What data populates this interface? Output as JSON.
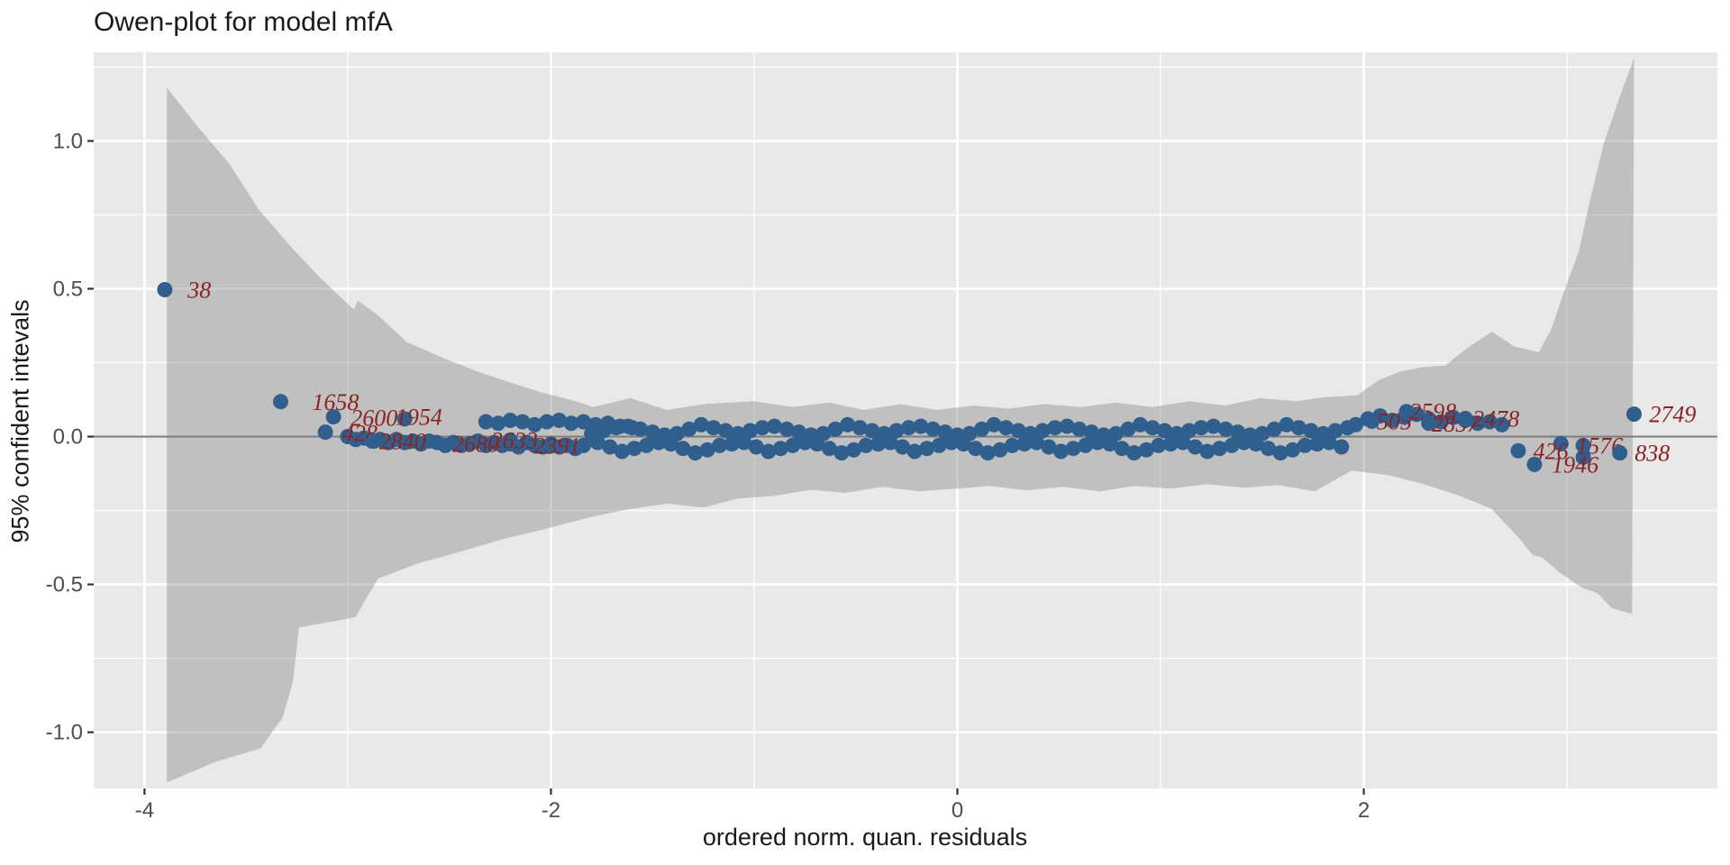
{
  "title": "Owen-plot for model mfA",
  "colors": {
    "panel_bg": "#e9e9e9",
    "grid": "#ffffff",
    "band_gray": "#c7c7c7",
    "zero_line": "#7d7d7d",
    "point_blue": "#315f8d",
    "label_red": "#8b2323",
    "tick_text": "#4d4d4d",
    "axis_text": "#1a1a1a"
  },
  "chart_data": {
    "type": "scatter",
    "title": "Owen-plot for model mfA",
    "xlabel": "ordered norm. quan. residuals",
    "ylabel": "95% confident intevals",
    "x_range": [
      -4.25,
      3.74
    ],
    "y_range": [
      -1.19,
      1.3
    ],
    "grid": "on",
    "legend": "none",
    "x_ticks": [
      {
        "v": -4,
        "label": "-4"
      },
      {
        "v": -2,
        "label": "-2"
      },
      {
        "v": 0,
        "label": "0"
      },
      {
        "v": 2,
        "label": "2"
      }
    ],
    "y_ticks": [
      {
        "v": 1.0,
        "label": "1.0"
      },
      {
        "v": 0.5,
        "label": "0.5"
      },
      {
        "v": 0.0,
        "label": "0.0"
      },
      {
        "v": -0.5,
        "label": "-0.5"
      },
      {
        "v": -1.0,
        "label": "-1.0"
      }
    ],
    "x_minor": [
      -3,
      -1,
      1,
      3
    ],
    "y_minor": [
      1.25,
      0.75,
      0.25,
      -0.25,
      -0.75
    ],
    "hline": 0,
    "band": {
      "upper": [
        [
          -3.89,
          1.18
        ],
        [
          -3.74,
          1.05
        ],
        [
          -3.58,
          0.92
        ],
        [
          -3.44,
          0.77
        ],
        [
          -3.29,
          0.65
        ],
        [
          -3.14,
          0.54
        ],
        [
          -2.97,
          0.43
        ],
        [
          -2.95,
          0.46
        ],
        [
          -2.85,
          0.41
        ],
        [
          -2.71,
          0.32
        ],
        [
          -2.61,
          0.29
        ],
        [
          -2.51,
          0.26
        ],
        [
          -2.36,
          0.22
        ],
        [
          -2.23,
          0.19
        ],
        [
          -2.05,
          0.15
        ],
        [
          -1.88,
          0.12
        ],
        [
          -1.79,
          0.1
        ],
        [
          -1.61,
          0.13
        ],
        [
          -1.43,
          0.09
        ],
        [
          -1.25,
          0.11
        ],
        [
          -1.0,
          0.12
        ],
        [
          -0.81,
          0.1
        ],
        [
          -0.63,
          0.115
        ],
        [
          -0.46,
          0.09
        ],
        [
          -0.28,
          0.11
        ],
        [
          -0.1,
          0.09
        ],
        [
          0.08,
          0.105
        ],
        [
          0.25,
          0.095
        ],
        [
          0.43,
          0.11
        ],
        [
          0.61,
          0.1
        ],
        [
          0.78,
          0.115
        ],
        [
          0.96,
          0.1
        ],
        [
          1.14,
          0.12
        ],
        [
          1.32,
          0.105
        ],
        [
          1.49,
          0.13
        ],
        [
          1.67,
          0.12
        ],
        [
          1.8,
          0.133
        ],
        [
          1.97,
          0.14
        ],
        [
          2.07,
          0.19
        ],
        [
          2.18,
          0.22
        ],
        [
          2.29,
          0.235
        ],
        [
          2.4,
          0.24
        ],
        [
          2.51,
          0.3
        ],
        [
          2.63,
          0.355
        ],
        [
          2.74,
          0.305
        ],
        [
          2.86,
          0.285
        ],
        [
          2.92,
          0.36
        ],
        [
          2.99,
          0.5
        ],
        [
          3.06,
          0.63
        ],
        [
          3.11,
          0.79
        ],
        [
          3.18,
          0.99
        ],
        [
          3.27,
          1.17
        ],
        [
          3.33,
          1.28
        ]
      ],
      "lower": [
        [
          -3.89,
          -1.17
        ],
        [
          -3.65,
          -1.1
        ],
        [
          -3.43,
          -1.055
        ],
        [
          -3.32,
          -0.95
        ],
        [
          -3.27,
          -0.83
        ],
        [
          -3.24,
          -0.645
        ],
        [
          -3.07,
          -0.625
        ],
        [
          -2.96,
          -0.61
        ],
        [
          -2.92,
          -0.56
        ],
        [
          -2.85,
          -0.48
        ],
        [
          -2.79,
          -0.465
        ],
        [
          -2.66,
          -0.43
        ],
        [
          -2.5,
          -0.4
        ],
        [
          -2.35,
          -0.37
        ],
        [
          -2.2,
          -0.34
        ],
        [
          -2.07,
          -0.32
        ],
        [
          -1.96,
          -0.3
        ],
        [
          -1.79,
          -0.27
        ],
        [
          -1.61,
          -0.245
        ],
        [
          -1.43,
          -0.227
        ],
        [
          -1.25,
          -0.24
        ],
        [
          -1.08,
          -0.21
        ],
        [
          -0.9,
          -0.2
        ],
        [
          -0.72,
          -0.18
        ],
        [
          -0.55,
          -0.19
        ],
        [
          -0.37,
          -0.17
        ],
        [
          -0.19,
          -0.185
        ],
        [
          0.0,
          -0.176
        ],
        [
          0.16,
          -0.167
        ],
        [
          0.34,
          -0.182
        ],
        [
          0.52,
          -0.17
        ],
        [
          0.7,
          -0.185
        ],
        [
          0.87,
          -0.167
        ],
        [
          1.05,
          -0.176
        ],
        [
          1.23,
          -0.161
        ],
        [
          1.41,
          -0.173
        ],
        [
          1.58,
          -0.164
        ],
        [
          1.76,
          -0.185
        ],
        [
          1.94,
          -0.115
        ],
        [
          2.12,
          -0.13
        ],
        [
          2.29,
          -0.16
        ],
        [
          2.46,
          -0.197
        ],
        [
          2.63,
          -0.245
        ],
        [
          2.69,
          -0.29
        ],
        [
          2.76,
          -0.34
        ],
        [
          2.83,
          -0.4
        ],
        [
          2.88,
          -0.41
        ],
        [
          2.96,
          -0.458
        ],
        [
          3.07,
          -0.51
        ],
        [
          3.15,
          -0.53
        ],
        [
          3.22,
          -0.58
        ],
        [
          3.32,
          -0.6
        ]
      ]
    },
    "points": [
      [
        -3.0,
        0.0
      ],
      [
        -2.96,
        -0.01
      ],
      [
        -2.92,
        -0.005
      ],
      [
        -2.88,
        -0.015
      ],
      [
        -2.84,
        -0.01
      ],
      [
        -2.8,
        -0.02
      ],
      [
        -2.76,
        -0.01
      ],
      [
        -2.72,
        -0.02
      ],
      [
        -2.68,
        -0.015
      ],
      [
        -2.64,
        -0.025
      ],
      [
        -2.6,
        -0.015
      ],
      [
        -2.56,
        -0.02
      ],
      [
        -2.52,
        -0.03
      ],
      [
        -2.48,
        -0.02
      ],
      [
        -2.44,
        -0.03
      ],
      [
        -2.4,
        -0.025
      ],
      [
        -2.36,
        -0.015
      ],
      [
        -2.32,
        -0.03
      ],
      [
        -2.28,
        -0.02
      ],
      [
        -2.24,
        -0.03
      ],
      [
        -2.2,
        -0.025
      ],
      [
        -2.16,
        -0.035
      ],
      [
        -2.12,
        -0.02
      ],
      [
        -2.08,
        -0.03
      ],
      [
        -2.04,
        -0.035
      ],
      [
        -2.0,
        -0.025
      ],
      [
        -1.96,
        -0.035
      ],
      [
        -1.92,
        -0.03
      ],
      [
        -1.88,
        -0.04
      ],
      [
        -1.84,
        -0.03
      ],
      [
        -2.32,
        0.05
      ],
      [
        -2.26,
        0.045
      ],
      [
        -2.2,
        0.055
      ],
      [
        -2.14,
        0.05
      ],
      [
        -2.08,
        0.04
      ],
      [
        -2.02,
        0.05
      ],
      [
        -1.96,
        0.055
      ],
      [
        -1.9,
        0.045
      ],
      [
        -1.84,
        0.05
      ],
      [
        -1.78,
        0.04
      ],
      [
        -1.72,
        0.045
      ],
      [
        -1.66,
        0.035
      ],
      [
        -1.6,
        0.03
      ],
      [
        -1.8,
        0.01
      ],
      [
        -1.74,
        0.02
      ],
      [
        -1.68,
        0.03
      ],
      [
        -1.62,
        0.035
      ],
      [
        -1.56,
        0.025
      ],
      [
        -1.5,
        0.015
      ],
      [
        -1.44,
        0.005
      ],
      [
        -1.38,
        0.01
      ],
      [
        -1.32,
        0.025
      ],
      [
        -1.26,
        0.04
      ],
      [
        -1.2,
        0.03
      ],
      [
        -1.14,
        0.02
      ],
      [
        -1.08,
        0.01
      ],
      [
        -1.02,
        0.02
      ],
      [
        -0.96,
        0.03
      ],
      [
        -0.9,
        0.035
      ],
      [
        -0.84,
        0.025
      ],
      [
        -0.78,
        0.015
      ],
      [
        -0.72,
        0.005
      ],
      [
        -0.66,
        0.01
      ],
      [
        -0.6,
        0.025
      ],
      [
        -0.54,
        0.04
      ],
      [
        -0.48,
        0.03
      ],
      [
        -0.42,
        0.02
      ],
      [
        -0.36,
        0.01
      ],
      [
        -0.3,
        0.02
      ],
      [
        -0.24,
        0.03
      ],
      [
        -0.18,
        0.035
      ],
      [
        -0.12,
        0.025
      ],
      [
        -0.06,
        0.015
      ],
      [
        0.0,
        0.005
      ],
      [
        0.06,
        0.01
      ],
      [
        0.12,
        0.025
      ],
      [
        0.18,
        0.04
      ],
      [
        0.24,
        0.03
      ],
      [
        0.3,
        0.02
      ],
      [
        0.36,
        0.01
      ],
      [
        0.42,
        0.02
      ],
      [
        0.48,
        0.03
      ],
      [
        0.54,
        0.035
      ],
      [
        0.6,
        0.025
      ],
      [
        0.66,
        0.015
      ],
      [
        0.72,
        0.005
      ],
      [
        0.78,
        0.01
      ],
      [
        0.84,
        0.025
      ],
      [
        0.9,
        0.04
      ],
      [
        0.96,
        0.03
      ],
      [
        1.02,
        0.02
      ],
      [
        1.08,
        0.01
      ],
      [
        1.14,
        0.02
      ],
      [
        1.2,
        0.03
      ],
      [
        1.26,
        0.035
      ],
      [
        1.32,
        0.025
      ],
      [
        1.38,
        0.015
      ],
      [
        1.44,
        0.005
      ],
      [
        1.5,
        0.01
      ],
      [
        1.56,
        0.025
      ],
      [
        1.62,
        0.04
      ],
      [
        1.68,
        0.03
      ],
      [
        1.74,
        0.02
      ],
      [
        1.8,
        0.01
      ],
      [
        1.86,
        0.02
      ],
      [
        1.92,
        0.03
      ],
      [
        -1.77,
        -0.02
      ],
      [
        -1.71,
        -0.035
      ],
      [
        -1.65,
        -0.05
      ],
      [
        -1.59,
        -0.04
      ],
      [
        -1.53,
        -0.03
      ],
      [
        -1.47,
        -0.02
      ],
      [
        -1.41,
        -0.025
      ],
      [
        -1.35,
        -0.04
      ],
      [
        -1.29,
        -0.055
      ],
      [
        -1.23,
        -0.045
      ],
      [
        -1.17,
        -0.03
      ],
      [
        -1.11,
        -0.025
      ],
      [
        -1.05,
        -0.02
      ],
      [
        -0.99,
        -0.035
      ],
      [
        -0.93,
        -0.05
      ],
      [
        -0.87,
        -0.04
      ],
      [
        -0.81,
        -0.03
      ],
      [
        -0.75,
        -0.02
      ],
      [
        -0.69,
        -0.025
      ],
      [
        -0.63,
        -0.04
      ],
      [
        -0.57,
        -0.055
      ],
      [
        -0.51,
        -0.045
      ],
      [
        -0.45,
        -0.03
      ],
      [
        -0.39,
        -0.025
      ],
      [
        -0.33,
        -0.02
      ],
      [
        -0.27,
        -0.035
      ],
      [
        -0.21,
        -0.05
      ],
      [
        -0.15,
        -0.04
      ],
      [
        -0.09,
        -0.03
      ],
      [
        -0.03,
        -0.02
      ],
      [
        0.03,
        -0.025
      ],
      [
        0.09,
        -0.04
      ],
      [
        0.15,
        -0.055
      ],
      [
        0.21,
        -0.045
      ],
      [
        0.27,
        -0.03
      ],
      [
        0.33,
        -0.025
      ],
      [
        0.39,
        -0.02
      ],
      [
        0.45,
        -0.035
      ],
      [
        0.51,
        -0.05
      ],
      [
        0.57,
        -0.04
      ],
      [
        0.63,
        -0.03
      ],
      [
        0.69,
        -0.02
      ],
      [
        0.75,
        -0.025
      ],
      [
        0.81,
        -0.04
      ],
      [
        0.87,
        -0.055
      ],
      [
        0.93,
        -0.045
      ],
      [
        0.99,
        -0.03
      ],
      [
        1.05,
        -0.025
      ],
      [
        1.11,
        -0.02
      ],
      [
        1.17,
        -0.035
      ],
      [
        1.23,
        -0.05
      ],
      [
        1.29,
        -0.04
      ],
      [
        1.35,
        -0.03
      ],
      [
        1.41,
        -0.02
      ],
      [
        1.47,
        -0.025
      ],
      [
        1.53,
        -0.04
      ],
      [
        1.59,
        -0.055
      ],
      [
        1.65,
        -0.045
      ],
      [
        1.71,
        -0.03
      ],
      [
        1.77,
        -0.025
      ],
      [
        1.83,
        -0.02
      ],
      [
        1.89,
        -0.035
      ],
      [
        1.96,
        0.04
      ],
      [
        2.02,
        0.06
      ],
      [
        2.08,
        0.07
      ],
      [
        2.14,
        0.055
      ],
      [
        2.2,
        0.065
      ],
      [
        2.26,
        0.075
      ],
      [
        2.32,
        0.06
      ],
      [
        2.38,
        0.05
      ],
      [
        2.44,
        0.065
      ],
      [
        2.5,
        0.055
      ],
      [
        2.56,
        0.045
      ],
      [
        2.62,
        0.05
      ],
      [
        2.68,
        0.04
      ],
      [
        2.97,
        -0.024
      ],
      [
        3.08,
        -0.07
      ]
    ],
    "labeled_points": [
      {
        "label": "38",
        "point": [
          -3.9,
          0.497
        ],
        "text": [
          -3.73,
          0.497
        ]
      },
      {
        "label": "1658",
        "point": [
          -3.33,
          0.118
        ],
        "text": [
          -3.06,
          0.118
        ]
      },
      {
        "label": "2600",
        "point": [
          -3.07,
          0.067
        ],
        "text": [
          -2.87,
          0.064
        ]
      },
      {
        "label": "1954",
        "point": [
          -2.72,
          0.06
        ],
        "text": [
          -2.65,
          0.067
        ]
      },
      {
        "label": "428",
        "point": [
          -3.11,
          0.015
        ],
        "text": [
          -2.94,
          0.012
        ]
      },
      {
        "label": "2840",
        "point": [
          -2.87,
          -0.015
        ],
        "text": [
          -2.73,
          -0.015
        ]
      },
      {
        "label": "2680",
        "point": [
          -2.4,
          -0.024
        ],
        "text": [
          -2.37,
          -0.024
        ]
      },
      {
        "label": "2633",
        "point": [
          -2.2,
          -0.012
        ],
        "text": [
          -2.18,
          -0.012
        ]
      },
      {
        "label": "2391",
        "point": [
          -2.0,
          -0.03
        ],
        "text": [
          -1.97,
          -0.03
        ]
      },
      {
        "label": "505",
        "point": [
          2.04,
          0.052
        ],
        "text": [
          2.15,
          0.052
        ]
      },
      {
        "label": "2598",
        "point": [
          2.21,
          0.085
        ],
        "text": [
          2.34,
          0.085
        ]
      },
      {
        "label": "2857",
        "point": [
          2.32,
          0.045
        ],
        "text": [
          2.45,
          0.045
        ]
      },
      {
        "label": "2478",
        "point": [
          2.5,
          0.061
        ],
        "text": [
          2.65,
          0.061
        ]
      },
      {
        "label": "2749",
        "point": [
          3.33,
          0.076
        ],
        "text": [
          3.52,
          0.076
        ]
      },
      {
        "label": "426",
        "point": [
          2.76,
          -0.048
        ],
        "text": [
          2.92,
          -0.048
        ]
      },
      {
        "label": "1576",
        "point": [
          3.08,
          -0.03
        ],
        "text": [
          3.16,
          -0.03
        ]
      },
      {
        "label": "1946",
        "point": [
          2.84,
          -0.094
        ],
        "text": [
          3.04,
          -0.094
        ]
      },
      {
        "label": "838",
        "point": [
          3.26,
          -0.055
        ],
        "text": [
          3.42,
          -0.055
        ]
      }
    ]
  }
}
